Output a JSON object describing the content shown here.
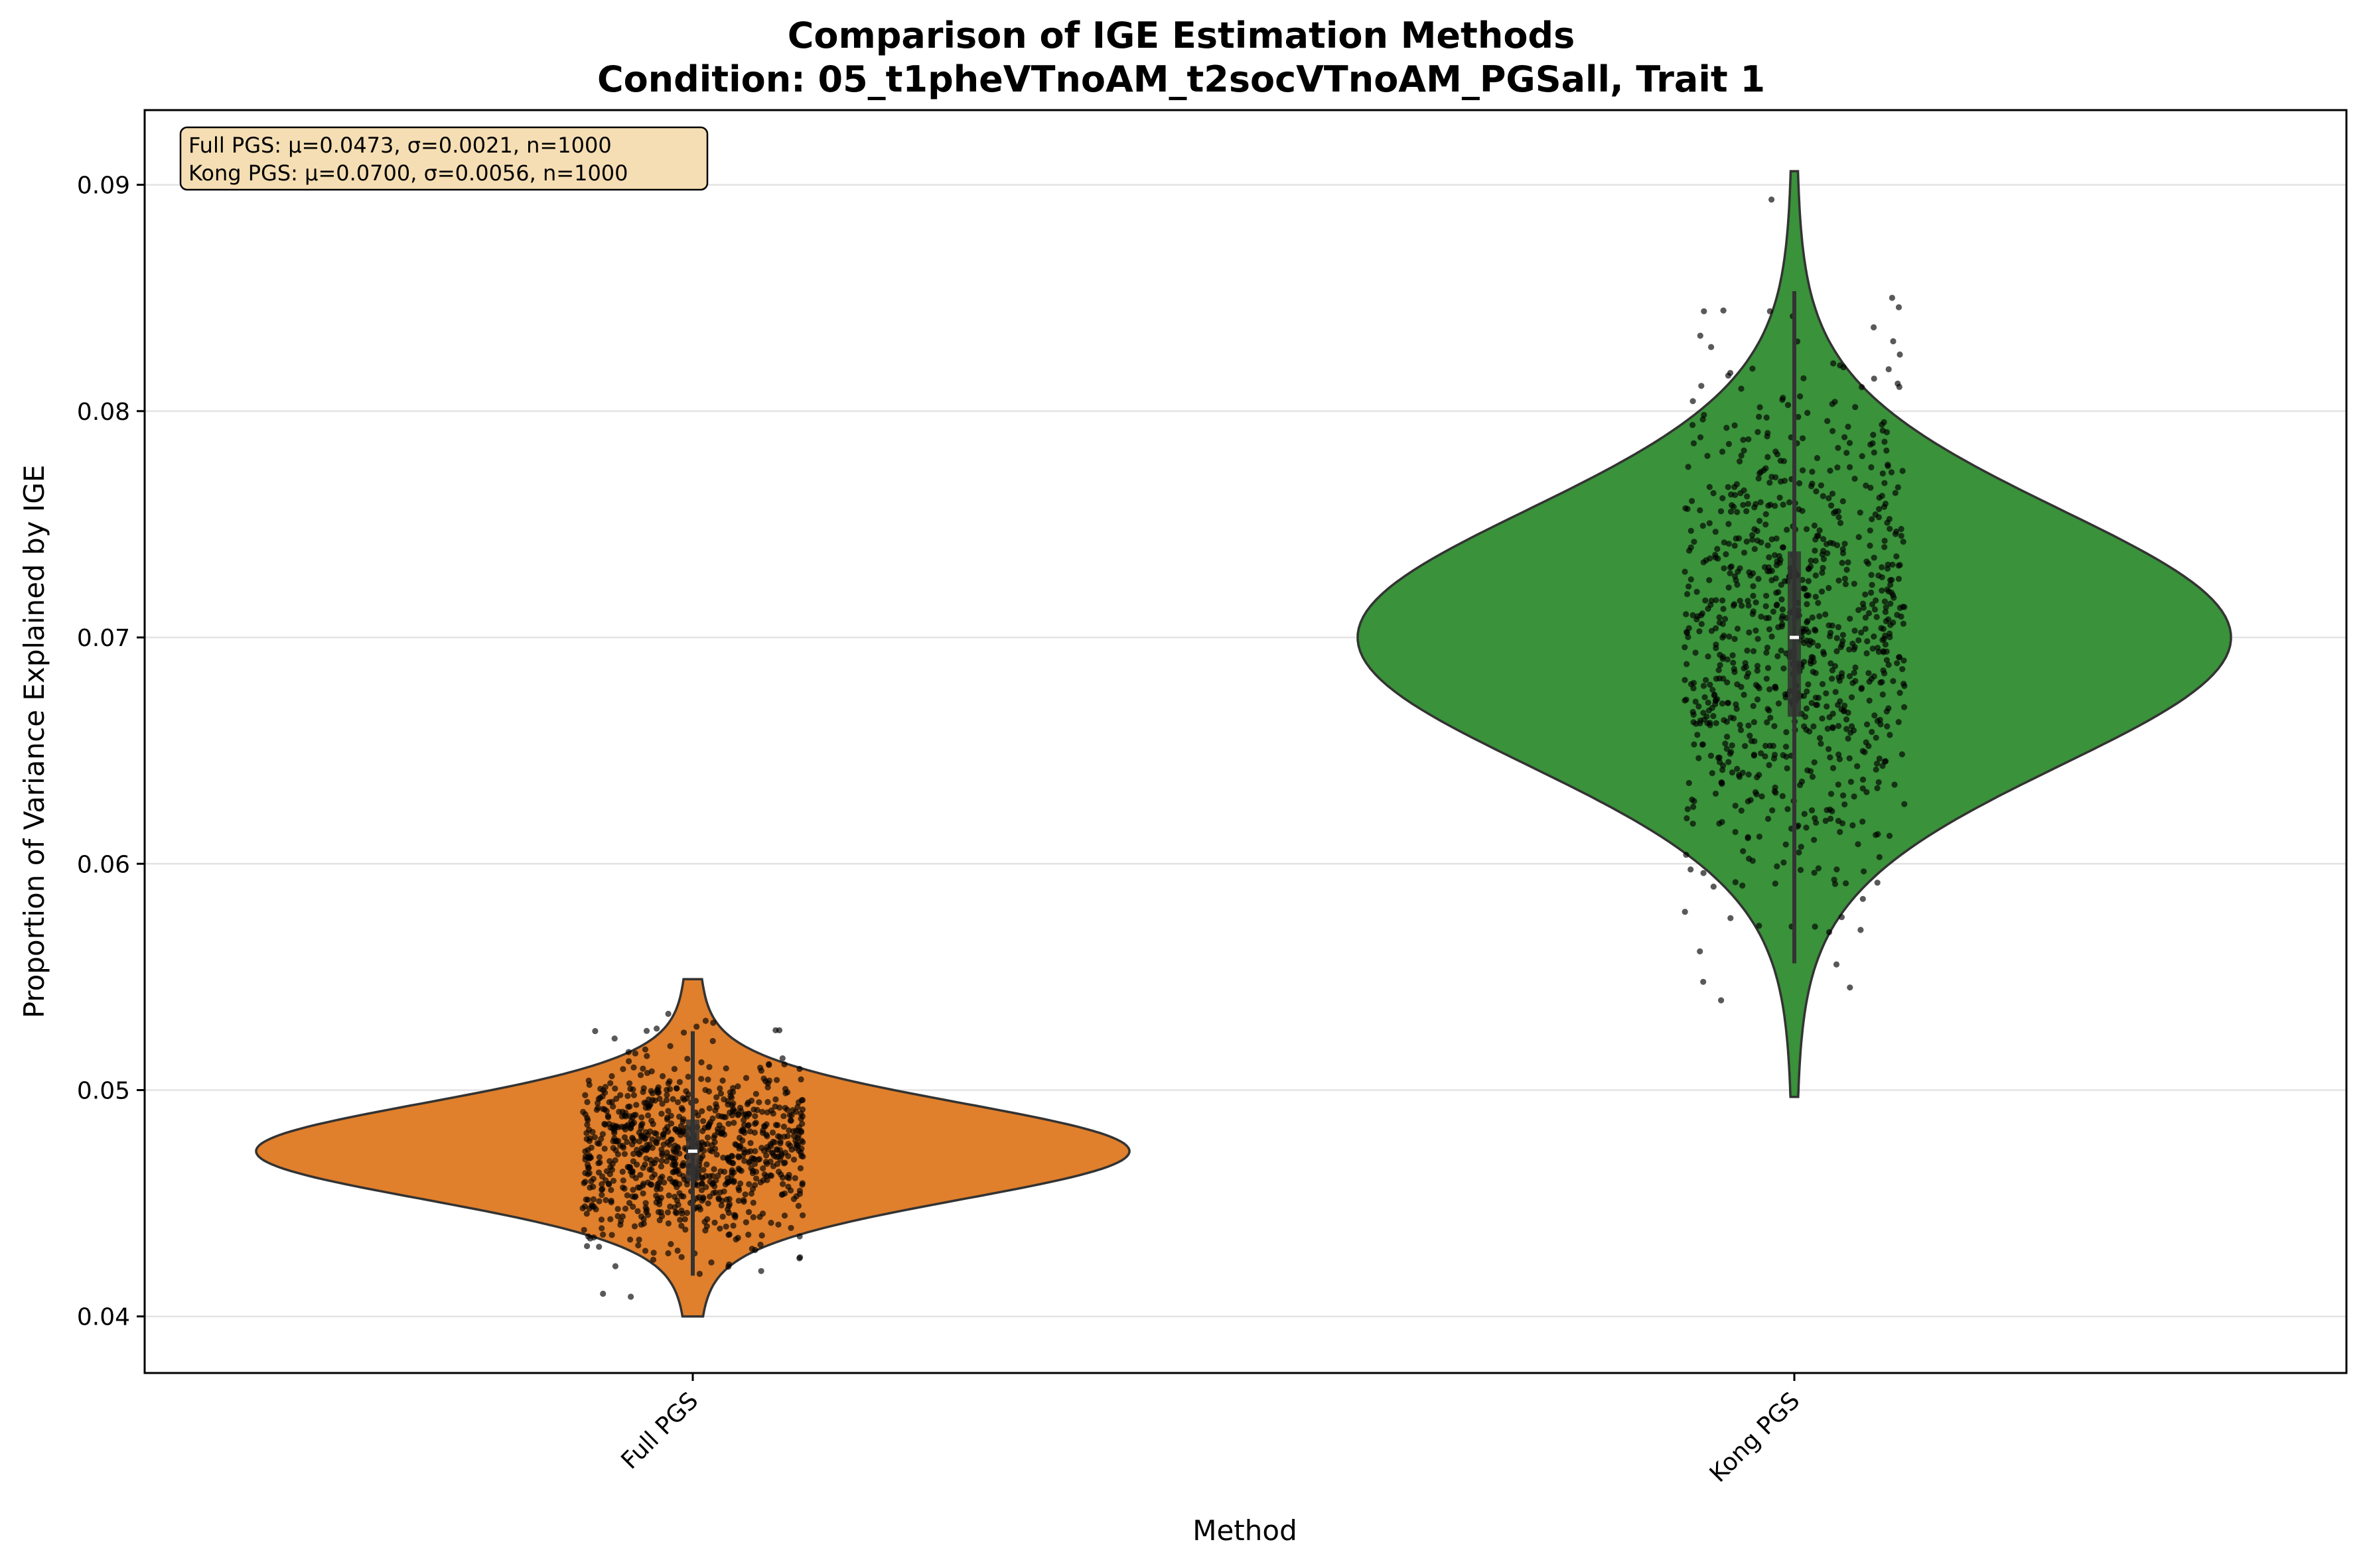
{
  "chart_data": {
    "type": "violin",
    "title": "Comparison of IGE Estimation Methods",
    "subtitle": "Condition: 05_t1pheVTnoAM_t2socVTnoAM_PGSall, Trait 1",
    "xlabel": "Method",
    "ylabel": "Proportion of Variance Explained by IGE",
    "categories": [
      "Full PGS",
      "Kong PGS"
    ],
    "ylim": [
      0.0375,
      0.0933
    ],
    "y_ticks": [
      0.04,
      0.05,
      0.06,
      0.07,
      0.08,
      0.09
    ],
    "y_tick_labels": [
      "0.04",
      "0.05",
      "0.06",
      "0.07",
      "0.08",
      "0.09"
    ],
    "grid": "y",
    "series": [
      {
        "category": "Full PGS",
        "color": "#E07F2C",
        "mean": 0.0473,
        "sd": 0.0021,
        "n": 1000,
        "median": 0.0473,
        "q1": 0.046,
        "q3": 0.0487,
        "whisker_low": 0.0418,
        "whisker_high": 0.0526,
        "min": 0.04,
        "max": 0.0549,
        "jitter_points": 900
      },
      {
        "category": "Kong PGS",
        "color": "#3A923A",
        "mean": 0.07,
        "sd": 0.0056,
        "n": 1000,
        "median": 0.07,
        "q1": 0.0665,
        "q3": 0.0738,
        "whisker_low": 0.0556,
        "whisker_high": 0.0853,
        "min": 0.0497,
        "max": 0.0906,
        "jitter_points": 900
      }
    ],
    "annotation": {
      "lines": [
        "Full PGS: μ=0.0473, σ=0.0021, n=1000",
        "Kong PGS: μ=0.0700, σ=0.0056, n=1000"
      ],
      "placement": "top-left",
      "background": "#F5DEB3"
    }
  }
}
